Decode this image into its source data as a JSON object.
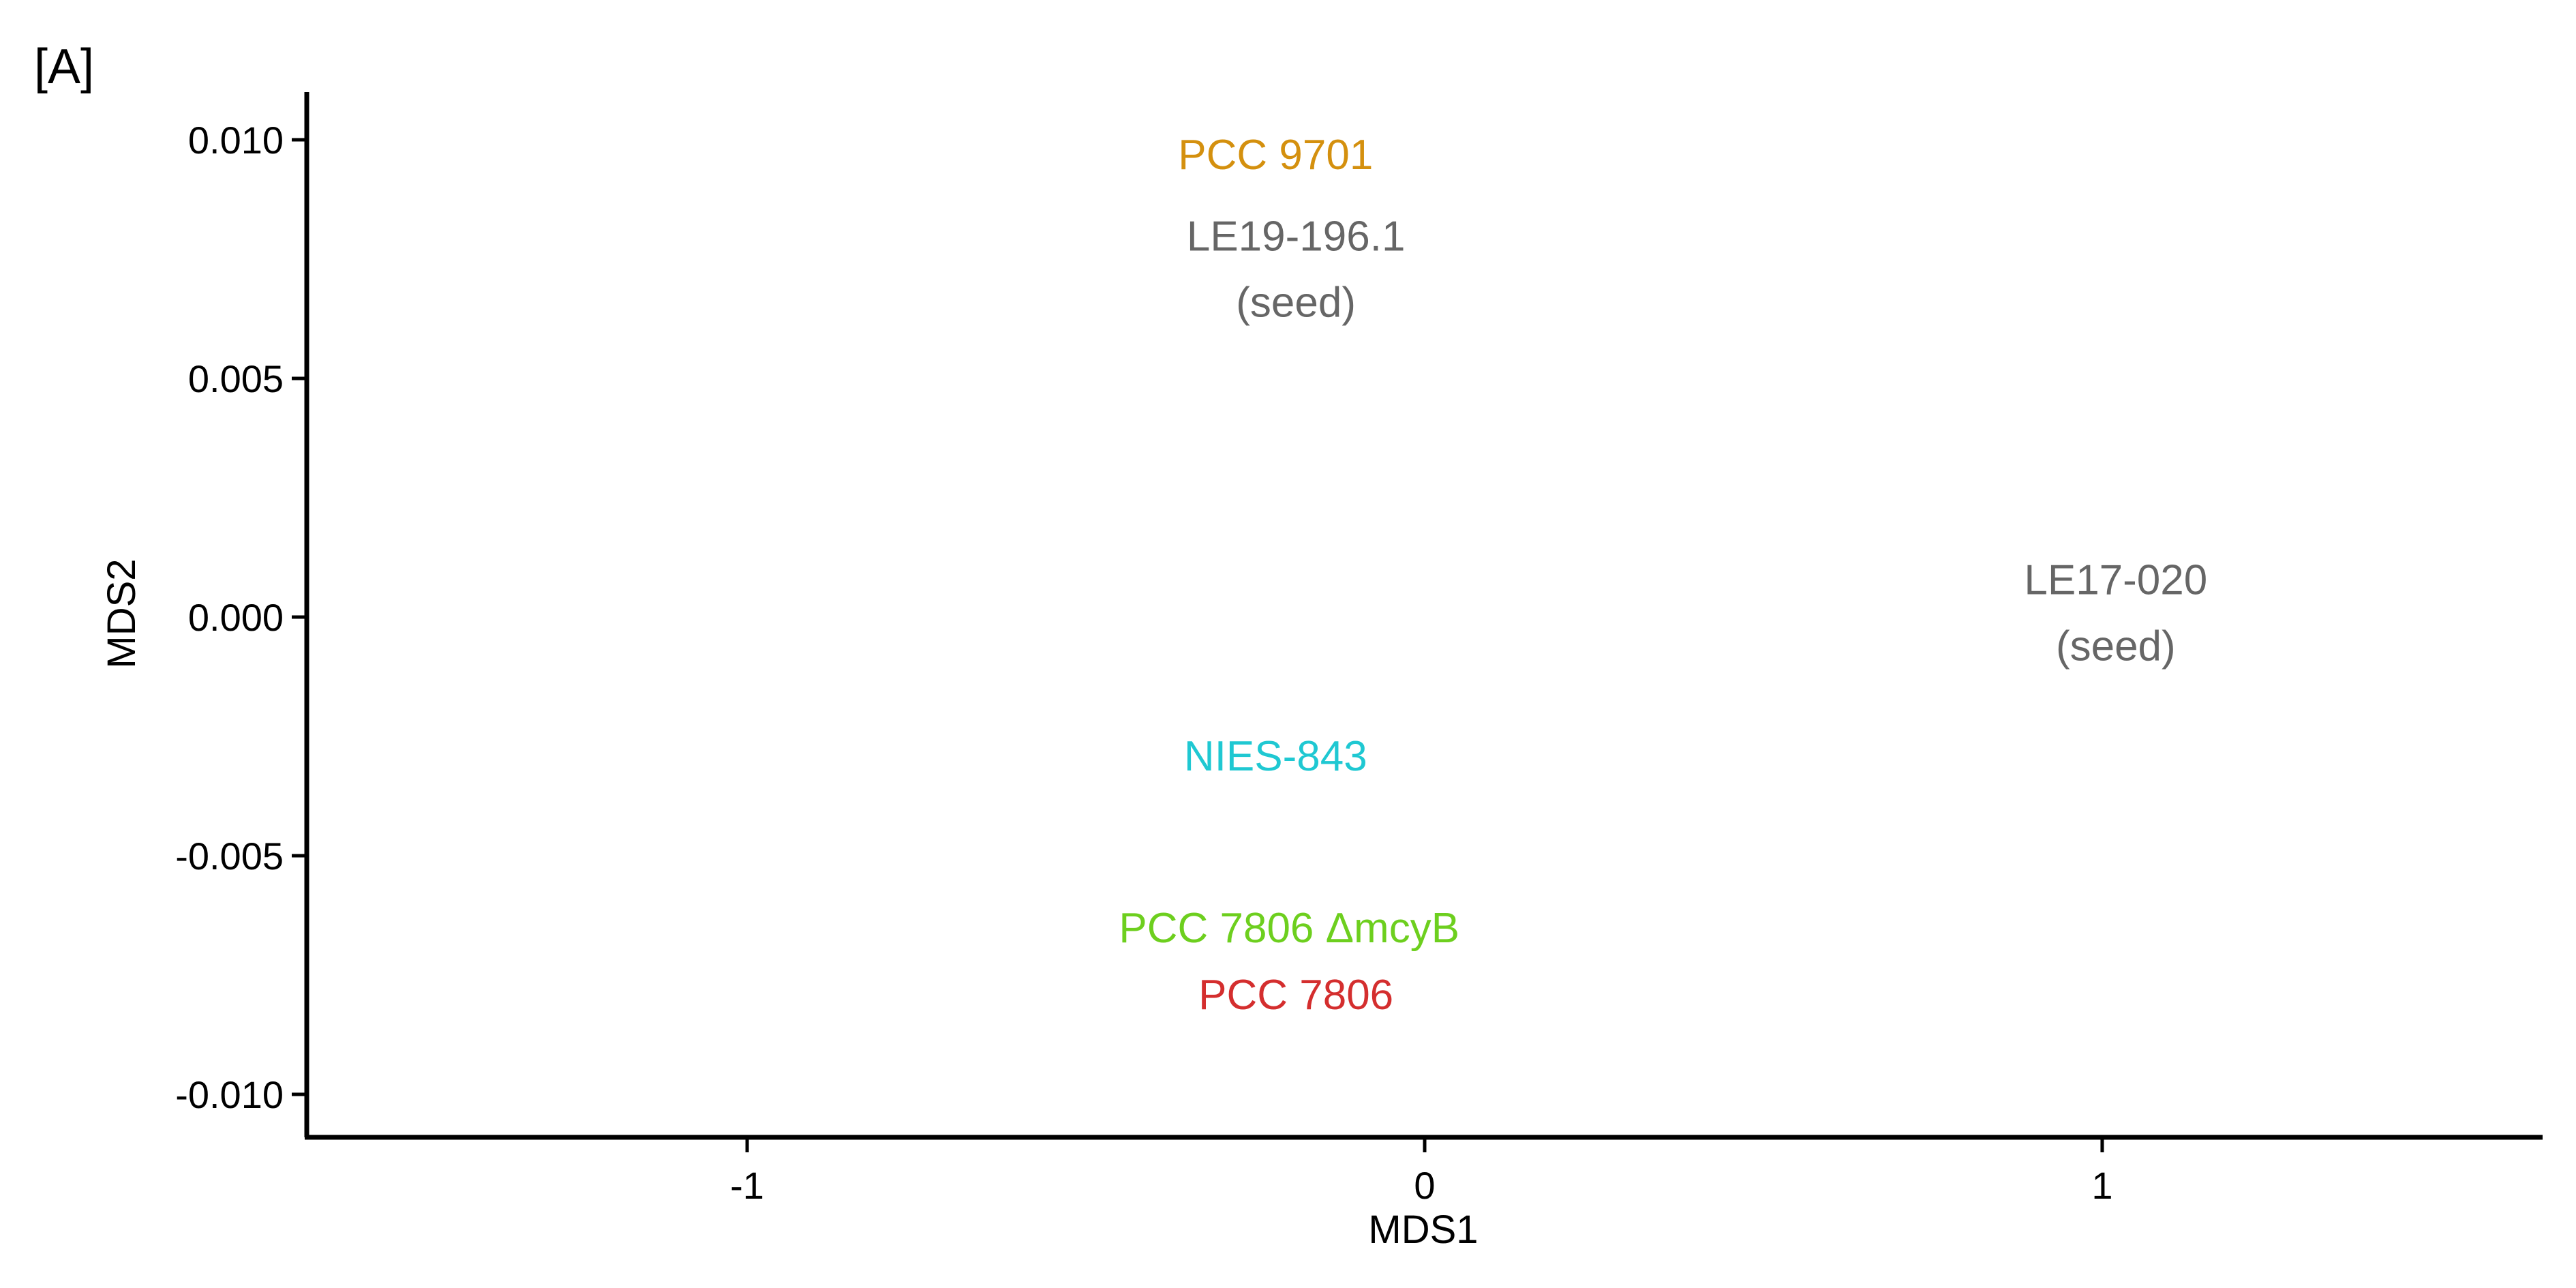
{
  "panel_label": "[A]",
  "chart_data": {
    "type": "scatter",
    "xlabel": "MDS1",
    "ylabel": "MDS2",
    "xlim": [
      -1.65,
      1.65
    ],
    "ylim": [
      -0.0109,
      0.011
    ],
    "grid": false,
    "legend": "none",
    "x_ticks": [
      {
        "value": -1,
        "label": "-1"
      },
      {
        "value": 0,
        "label": "0"
      },
      {
        "value": 1,
        "label": "1"
      }
    ],
    "y_ticks": [
      {
        "value": 0.01,
        "label": "0.010"
      },
      {
        "value": 0.005,
        "label": "0.005"
      },
      {
        "value": 0.0,
        "label": "0.000"
      },
      {
        "value": -0.005,
        "label": "-0.005"
      },
      {
        "value": -0.01,
        "label": "-0.010"
      }
    ],
    "points": [
      {
        "lines": [
          "PCC 9701"
        ],
        "x": -0.22,
        "y": 0.0097,
        "color": "#D4900E"
      },
      {
        "lines": [
          "LE19-196.1",
          "(seed)"
        ],
        "x": -0.19,
        "y": 0.0073,
        "color": "#666666"
      },
      {
        "lines": [
          "LE17-020",
          "(seed)"
        ],
        "x": 1.02,
        "y": 0.0001,
        "color": "#666666"
      },
      {
        "lines": [
          "NIES-843"
        ],
        "x": -0.22,
        "y": -0.0029,
        "color": "#1FC8D2"
      },
      {
        "lines": [
          "PCC 7806 ΔmcyB"
        ],
        "x": -0.2,
        "y": -0.0065,
        "color": "#6DCF1E"
      },
      {
        "lines": [
          "PCC 7806"
        ],
        "x": -0.19,
        "y": -0.0079,
        "color": "#D42E2E"
      }
    ]
  }
}
